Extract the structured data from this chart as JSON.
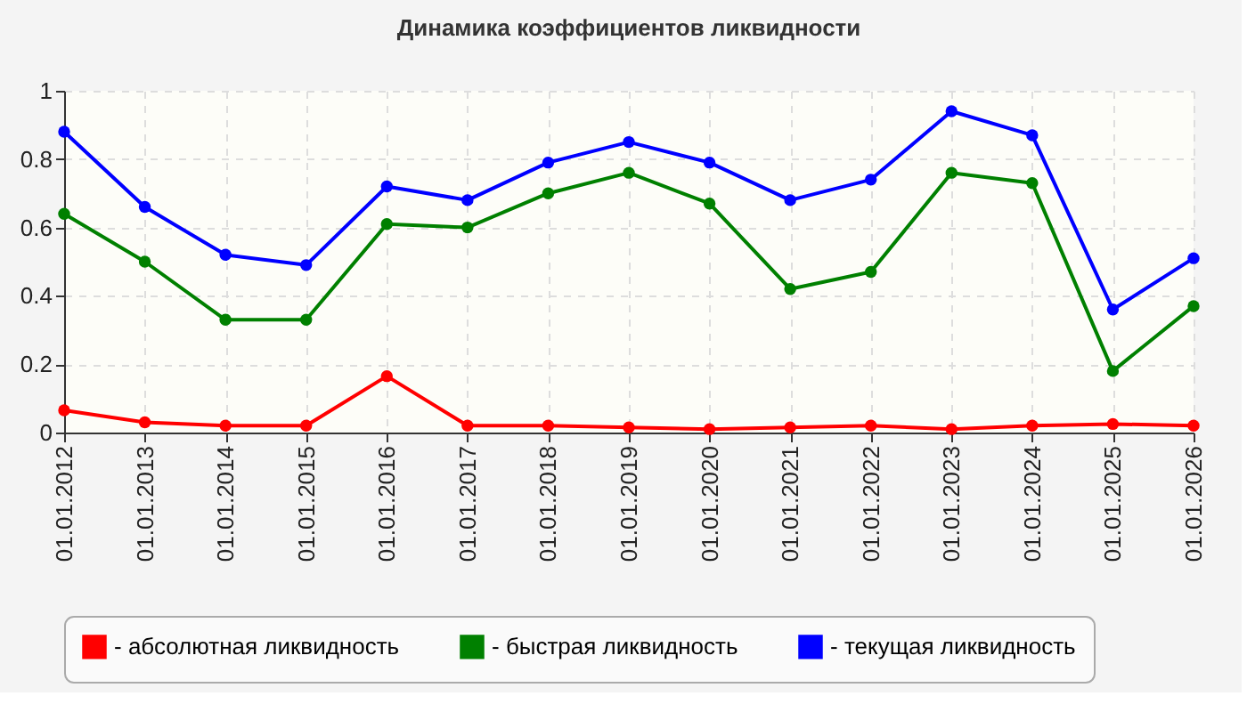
{
  "chart_data": {
    "type": "line",
    "title": "Динамика коэффициентов ликвидности",
    "categories": [
      "01.01.2012",
      "01.01.2013",
      "01.01.2014",
      "01.01.2015",
      "01.01.2016",
      "01.01.2017",
      "01.01.2018",
      "01.01.2019",
      "01.01.2020",
      "01.01.2021",
      "01.01.2022",
      "01.01.2023",
      "01.01.2024",
      "01.01.2025",
      "01.01.2026"
    ],
    "series": [
      {
        "name": "- абсолютная ликвидность",
        "color": "#ff0000",
        "values": [
          0.065,
          0.03,
          0.02,
          0.02,
          0.165,
          0.02,
          0.02,
          0.015,
          0.01,
          0.015,
          0.02,
          0.01,
          0.02,
          0.025,
          0.02
        ]
      },
      {
        "name": "- быстрая ликвидность",
        "color": "#008000",
        "values": [
          0.64,
          0.5,
          0.33,
          0.33,
          0.61,
          0.6,
          0.7,
          0.76,
          0.67,
          0.42,
          0.47,
          0.76,
          0.73,
          0.18,
          0.37
        ]
      },
      {
        "name": "- текущая ликвидность",
        "color": "#0000ff",
        "values": [
          0.88,
          0.66,
          0.52,
          0.49,
          0.72,
          0.68,
          0.79,
          0.85,
          0.79,
          0.68,
          0.74,
          0.94,
          0.87,
          0.36,
          0.51
        ]
      }
    ],
    "ylim": [
      0,
      1
    ],
    "yticks": [
      0,
      0.2,
      0.4,
      0.6,
      0.8,
      1
    ],
    "grid": true,
    "legend": "bottom",
    "marker": "circle",
    "line_style": "solid"
  }
}
